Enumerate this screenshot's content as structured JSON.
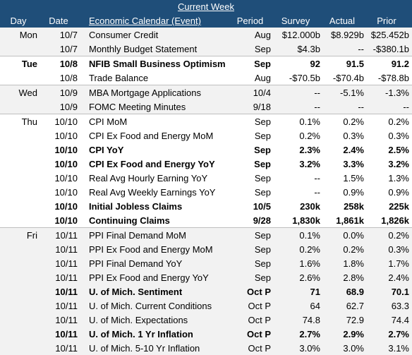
{
  "title": "Current Week",
  "columns": {
    "day": "Day",
    "date": "Date",
    "event": "Economic Calendar (Event)",
    "period": "Period",
    "survey": "Survey",
    "actual": "Actual",
    "prior": "Prior"
  },
  "rows": [
    {
      "day": "Mon",
      "date": "10/7",
      "event": "Consumer Credit",
      "period": "Aug",
      "survey": "$12.000b",
      "actual": "$8.929b",
      "prior": "$25.452b",
      "bold": false,
      "shade": true,
      "sep": false
    },
    {
      "day": "",
      "date": "10/7",
      "event": "Monthly Budget Statement",
      "period": "Sep",
      "survey": "$4.3b",
      "actual": "--",
      "prior": "-$380.1b",
      "bold": false,
      "shade": true,
      "sep": false
    },
    {
      "day": "Tue",
      "date": "10/8",
      "event": "NFIB Small Business Optimism",
      "period": "Sep",
      "survey": "92",
      "actual": "91.5",
      "prior": "91.2",
      "bold": true,
      "shade": false,
      "sep": true
    },
    {
      "day": "",
      "date": "10/8",
      "event": "Trade Balance",
      "period": "Aug",
      "survey": "-$70.5b",
      "actual": "-$70.4b",
      "prior": "-$78.8b",
      "bold": false,
      "shade": false,
      "sep": false
    },
    {
      "day": "Wed",
      "date": "10/9",
      "event": "MBA Mortgage Applications",
      "period": "10/4",
      "survey": "--",
      "actual": "-5.1%",
      "prior": "-1.3%",
      "bold": false,
      "shade": true,
      "sep": true
    },
    {
      "day": "",
      "date": "10/9",
      "event": "FOMC Meeting Minutes",
      "period": "9/18",
      "survey": "--",
      "actual": "--",
      "prior": "--",
      "bold": false,
      "shade": true,
      "sep": false
    },
    {
      "day": "Thu",
      "date": "10/10",
      "event": "CPI MoM",
      "period": "Sep",
      "survey": "0.1%",
      "actual": "0.2%",
      "prior": "0.2%",
      "bold": false,
      "shade": false,
      "sep": true
    },
    {
      "day": "",
      "date": "10/10",
      "event": "CPI Ex Food and Energy MoM",
      "period": "Sep",
      "survey": "0.2%",
      "actual": "0.3%",
      "prior": "0.3%",
      "bold": false,
      "shade": false,
      "sep": false
    },
    {
      "day": "",
      "date": "10/10",
      "event": "CPI YoY",
      "period": "Sep",
      "survey": "2.3%",
      "actual": "2.4%",
      "prior": "2.5%",
      "bold": true,
      "shade": false,
      "sep": false
    },
    {
      "day": "",
      "date": "10/10",
      "event": "CPI Ex Food and Energy YoY",
      "period": "Sep",
      "survey": "3.2%",
      "actual": "3.3%",
      "prior": "3.2%",
      "bold": true,
      "shade": false,
      "sep": false
    },
    {
      "day": "",
      "date": "10/10",
      "event": "Real Avg Hourly Earning YoY",
      "period": "Sep",
      "survey": "--",
      "actual": "1.5%",
      "prior": "1.3%",
      "bold": false,
      "shade": false,
      "sep": false
    },
    {
      "day": "",
      "date": "10/10",
      "event": "Real Avg Weekly Earnings YoY",
      "period": "Sep",
      "survey": "--",
      "actual": "0.9%",
      "prior": "0.9%",
      "bold": false,
      "shade": false,
      "sep": false
    },
    {
      "day": "",
      "date": "10/10",
      "event": "Initial Jobless Claims",
      "period": "10/5",
      "survey": "230k",
      "actual": "258k",
      "prior": "225k",
      "bold": true,
      "shade": false,
      "sep": false
    },
    {
      "day": "",
      "date": "10/10",
      "event": "Continuing Claims",
      "period": "9/28",
      "survey": "1,830k",
      "actual": "1,861k",
      "prior": "1,826k",
      "bold": true,
      "shade": false,
      "sep": false
    },
    {
      "day": "Fri",
      "date": "10/11",
      "event": "PPI Final Demand MoM",
      "period": "Sep",
      "survey": "0.1%",
      "actual": "0.0%",
      "prior": "0.2%",
      "bold": false,
      "shade": true,
      "sep": true
    },
    {
      "day": "",
      "date": "10/11",
      "event": "PPI Ex Food and Energy MoM",
      "period": "Sep",
      "survey": "0.2%",
      "actual": "0.2%",
      "prior": "0.3%",
      "bold": false,
      "shade": true,
      "sep": false
    },
    {
      "day": "",
      "date": "10/11",
      "event": "PPI Final Demand YoY",
      "period": "Sep",
      "survey": "1.6%",
      "actual": "1.8%",
      "prior": "1.7%",
      "bold": false,
      "shade": true,
      "sep": false
    },
    {
      "day": "",
      "date": "10/11",
      "event": "PPI Ex Food and Energy YoY",
      "period": "Sep",
      "survey": "2.6%",
      "actual": "2.8%",
      "prior": "2.4%",
      "bold": false,
      "shade": true,
      "sep": false
    },
    {
      "day": "",
      "date": "10/11",
      "event": "U. of Mich. Sentiment",
      "period": "Oct P",
      "survey": "71",
      "actual": "68.9",
      "prior": "70.1",
      "bold": true,
      "shade": true,
      "sep": false
    },
    {
      "day": "",
      "date": "10/11",
      "event": "U. of Mich. Current Conditions",
      "period": "Oct P",
      "survey": "64",
      "actual": "62.7",
      "prior": "63.3",
      "bold": false,
      "shade": true,
      "sep": false
    },
    {
      "day": "",
      "date": "10/11",
      "event": "U. of Mich. Expectations",
      "period": "Oct P",
      "survey": "74.8",
      "actual": "72.9",
      "prior": "74.4",
      "bold": false,
      "shade": true,
      "sep": false
    },
    {
      "day": "",
      "date": "10/11",
      "event": "U. of Mich. 1 Yr Inflation",
      "period": "Oct P",
      "survey": "2.7%",
      "actual": "2.9%",
      "prior": "2.7%",
      "bold": true,
      "shade": true,
      "sep": false
    },
    {
      "day": "",
      "date": "10/11",
      "event": "U. of Mich. 5-10 Yr Inflation",
      "period": "Oct P",
      "survey": "3.0%",
      "actual": "3.0%",
      "prior": "3.1%",
      "bold": false,
      "shade": true,
      "sep": false
    }
  ],
  "colors": {
    "header_bg": "#1f4e79",
    "header_text": "#ffffff",
    "shade_bg": "#f2f2f2"
  }
}
